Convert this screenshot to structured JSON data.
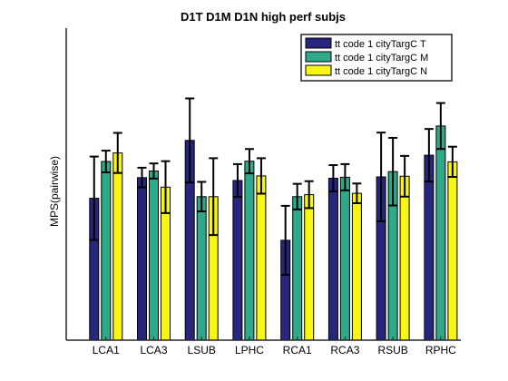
{
  "chart_data": {
    "type": "bar",
    "title": "D1T D1M D1N high perf subjs",
    "xlabel": "",
    "ylabel": "MPS(pairwise)",
    "grid": false,
    "legend_position": "top-right",
    "categories": [
      "LCA1",
      "LCA3",
      "LSUB",
      "LPHC",
      "RCA1",
      "RCA3",
      "RSUB",
      "RPHC"
    ],
    "series": [
      {
        "name": "tt code 1 cityTargC T",
        "color": "#28257c",
        "values": [
          0.432,
          0.495,
          0.608,
          0.486,
          0.304,
          0.493,
          0.497,
          0.563
        ],
        "errors": [
          0.127,
          0.03,
          0.128,
          0.05,
          0.105,
          0.04,
          0.135,
          0.08
        ]
      },
      {
        "name": "tt code 1 cityTargC M",
        "color": "#2ea98a",
        "values": [
          0.544,
          0.515,
          0.437,
          0.545,
          0.437,
          0.496,
          0.513,
          0.652
        ],
        "errors": [
          0.033,
          0.023,
          0.045,
          0.037,
          0.039,
          0.04,
          0.103,
          0.07
        ]
      },
      {
        "name": "tt code 1 cityTargC N",
        "color": "#f7f614",
        "values": [
          0.57,
          0.466,
          0.437,
          0.5,
          0.443,
          0.447,
          0.499,
          0.543
        ],
        "errors": [
          0.061,
          0.079,
          0.117,
          0.054,
          0.041,
          0.03,
          0.062,
          0.046
        ]
      }
    ],
    "ylim": [
      0.0,
      0.95
    ]
  }
}
